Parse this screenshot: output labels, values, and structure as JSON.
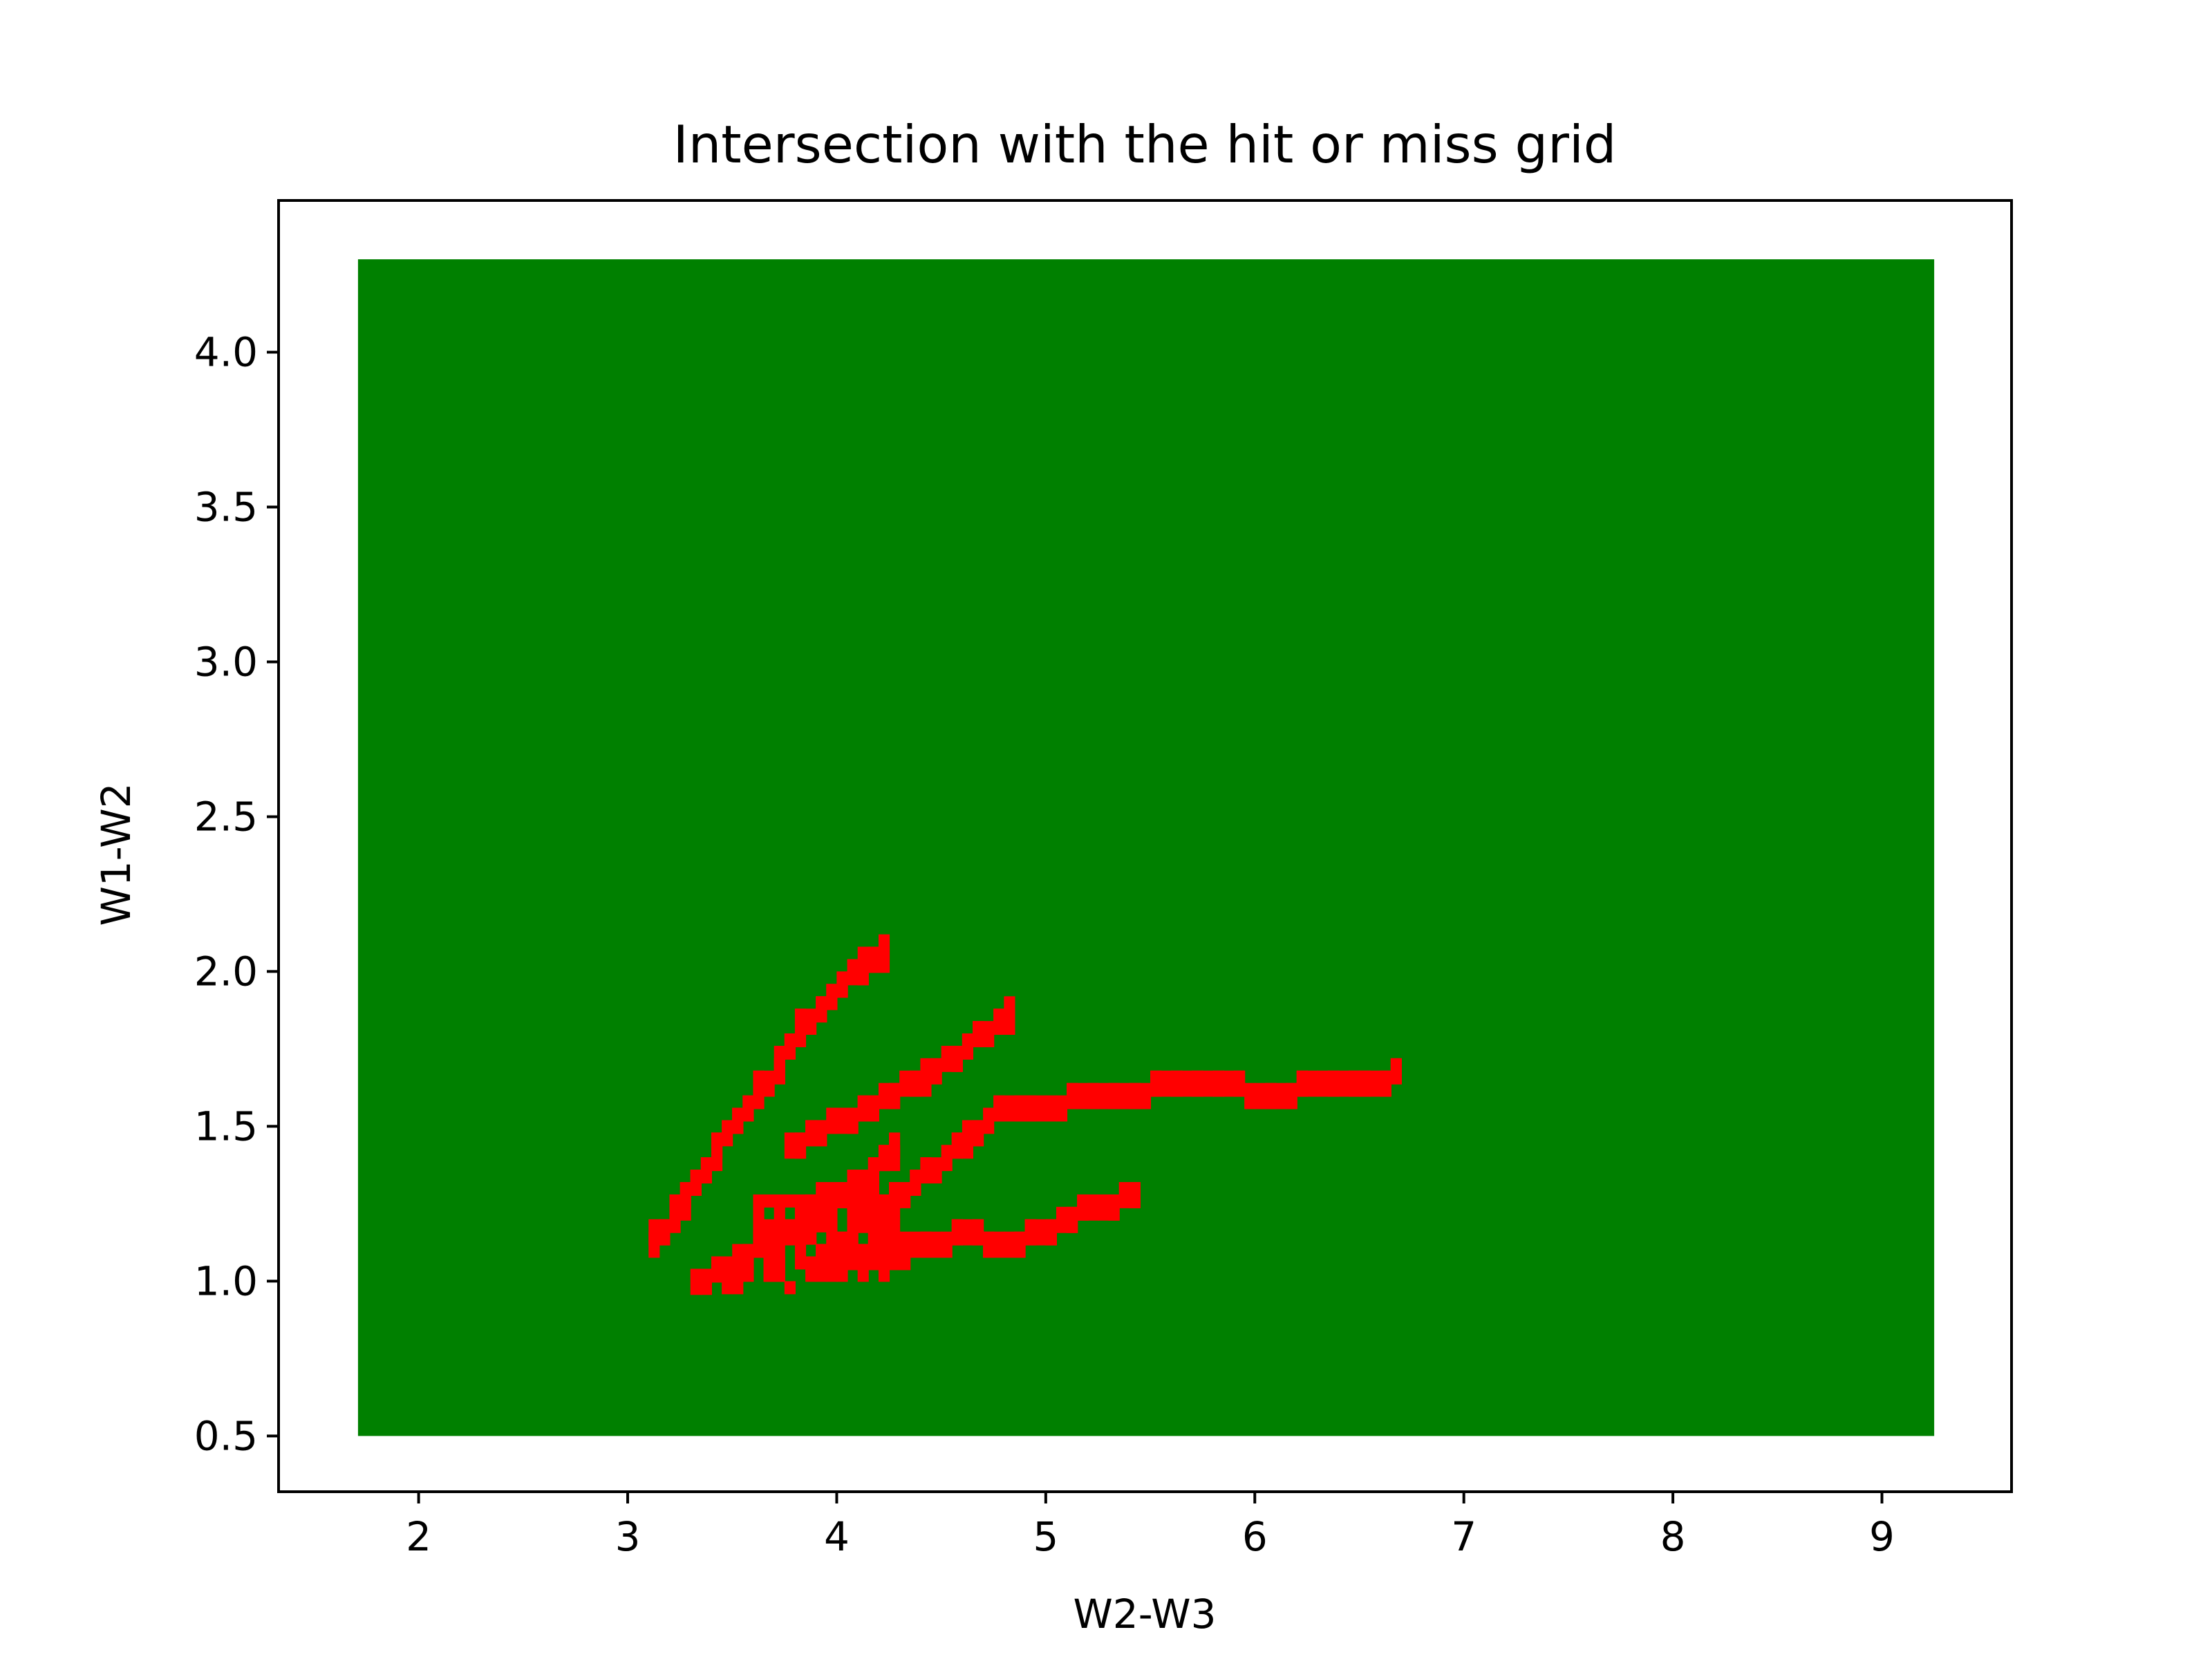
{
  "chart_data": {
    "type": "heatmap",
    "title": "Intersection with the hit or miss grid",
    "xlabel": "W2-W3",
    "ylabel": "W1-W2",
    "xlim": [
      1.33,
      9.62
    ],
    "ylim": [
      0.32,
      4.49
    ],
    "xticks": [
      2,
      3,
      4,
      5,
      6,
      7,
      8,
      9
    ],
    "yticks": [
      0.5,
      1.0,
      1.5,
      2.0,
      2.5,
      3.0,
      3.5,
      4.0
    ],
    "xtick_labels": [
      "2",
      "3",
      "4",
      "5",
      "6",
      "7",
      "8",
      "9"
    ],
    "ytick_labels": [
      "0.5",
      "1.0",
      "1.5",
      "2.0",
      "2.5",
      "3.0",
      "3.5",
      "4.0"
    ],
    "grid": false,
    "background_region": {
      "x": [
        1.71,
        9.25
      ],
      "y": [
        0.5,
        4.3
      ],
      "color": "#008000"
    },
    "hit_color": "#ff0000",
    "cell_size": [
      0.05,
      0.04
    ],
    "hit_tracks": [
      {
        "x": [
          3.08,
          3.15,
          3.22,
          3.28,
          3.35,
          3.42,
          3.48,
          3.55,
          3.62,
          3.68,
          3.75,
          3.82,
          3.88,
          3.95,
          4.02,
          4.08,
          4.15,
          4.22
        ],
        "y": [
          1.12,
          1.17,
          1.22,
          1.3,
          1.37,
          1.44,
          1.5,
          1.56,
          1.62,
          1.69,
          1.76,
          1.83,
          1.87,
          1.92,
          1.97,
          2.01,
          2.04,
          2.07
        ]
      },
      {
        "x": [
          3.75,
          3.85,
          3.95,
          4.05,
          4.15,
          4.25,
          4.35,
          4.45,
          4.55,
          4.65,
          4.75,
          4.82
        ],
        "y": [
          1.43,
          1.46,
          1.5,
          1.53,
          1.56,
          1.6,
          1.64,
          1.68,
          1.73,
          1.78,
          1.83,
          1.86
        ]
      },
      {
        "x": [
          4.1,
          4.25,
          4.4,
          4.55,
          4.65,
          4.75,
          4.9,
          5.1,
          5.3,
          5.5,
          5.7,
          5.9,
          6.05,
          6.2,
          6.35,
          6.5,
          6.6,
          6.66
        ],
        "y": [
          1.2,
          1.27,
          1.35,
          1.42,
          1.48,
          1.54,
          1.56,
          1.58,
          1.6,
          1.62,
          1.62,
          1.62,
          1.58,
          1.62,
          1.62,
          1.63,
          1.65,
          1.67
        ]
      },
      {
        "x": [
          3.9,
          4.05,
          4.2,
          4.4,
          4.55,
          4.7,
          4.85,
          5.0,
          5.15,
          5.3,
          5.42
        ],
        "y": [
          1.08,
          1.08,
          1.09,
          1.11,
          1.15,
          1.14,
          1.14,
          1.17,
          1.22,
          1.25,
          1.28
        ]
      },
      {
        "x": [
          3.32,
          3.4,
          3.48,
          3.55,
          3.62,
          3.7,
          3.78,
          3.85,
          3.92,
          3.98,
          4.05,
          4.1,
          4.15,
          4.2,
          4.27
        ],
        "y": [
          0.98,
          1.02,
          1.05,
          1.09,
          1.12,
          1.15,
          1.18,
          1.22,
          1.25,
          1.27,
          1.3,
          1.32,
          1.35,
          1.38,
          1.42
        ]
      }
    ],
    "hit_blobs": [
      {
        "x": [
          3.4,
          3.75
        ],
        "y": [
          0.96,
          1.04
        ]
      },
      {
        "x": [
          3.6,
          4.25
        ],
        "y": [
          1.0,
          1.25
        ]
      },
      {
        "x": [
          3.85,
          4.2
        ],
        "y": [
          1.05,
          1.3
        ]
      }
    ]
  }
}
